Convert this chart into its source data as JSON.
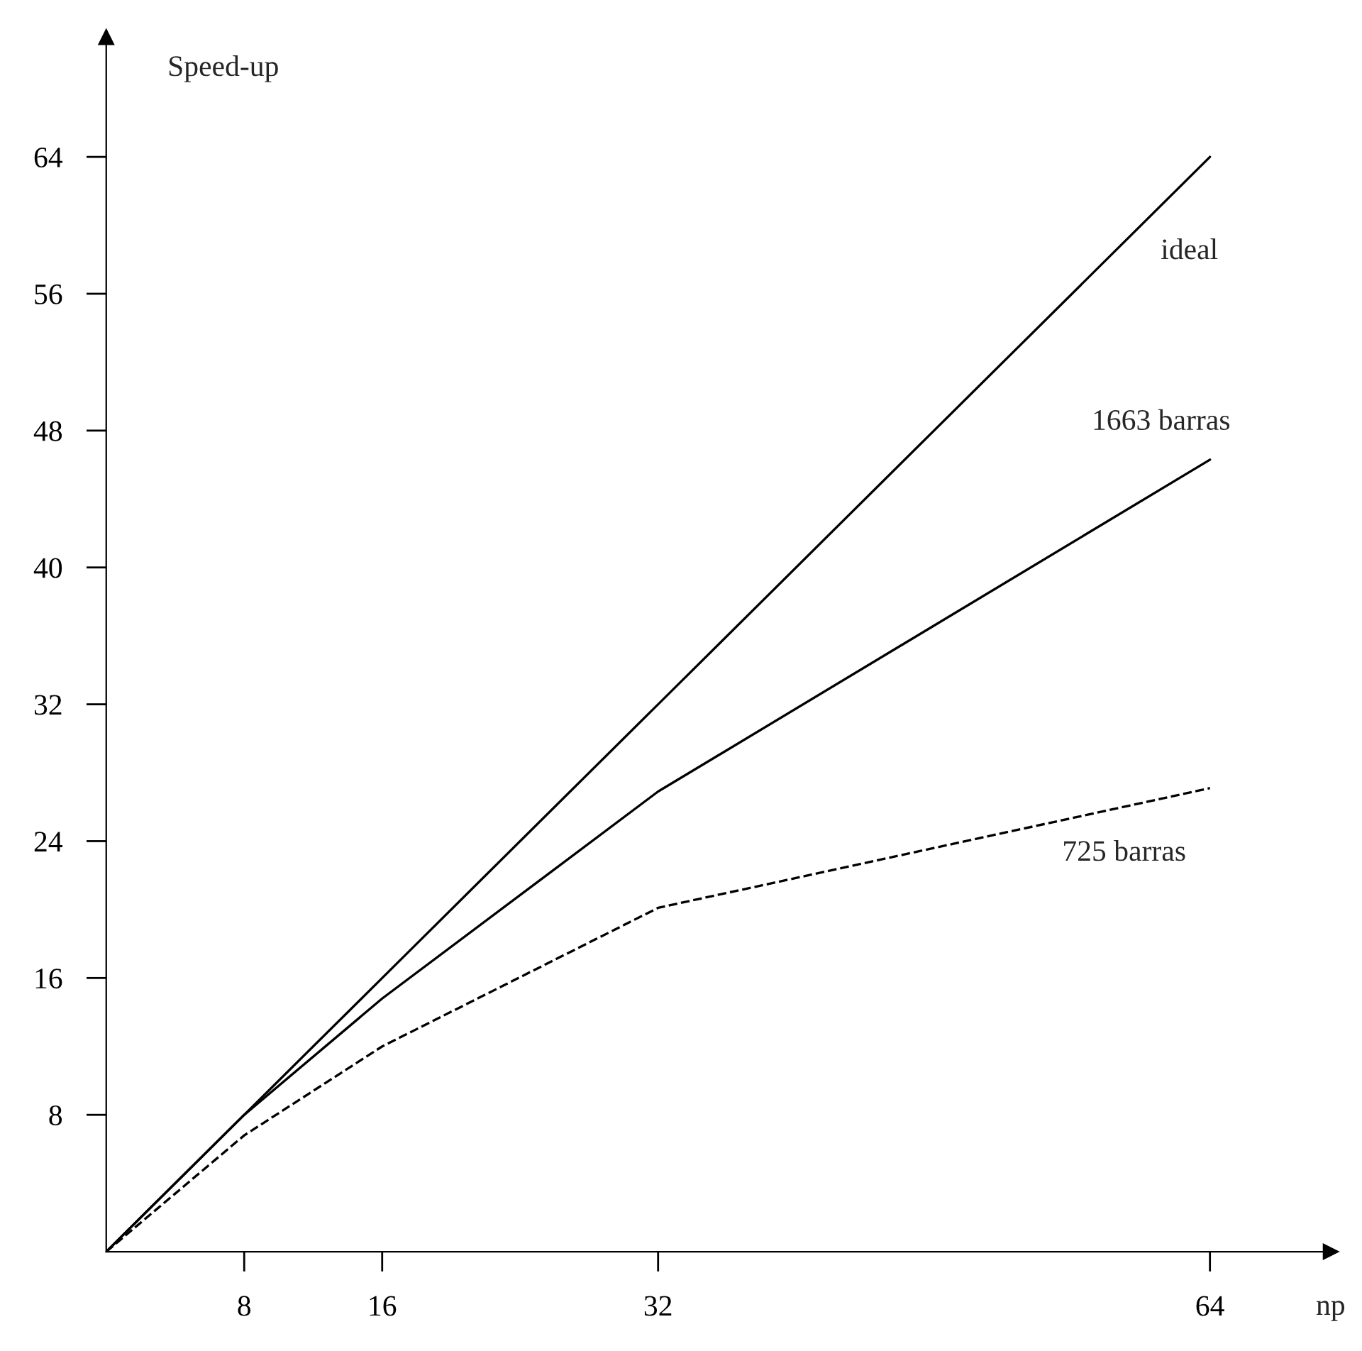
{
  "chart_data": {
    "type": "line",
    "xlabel": "np",
    "ylabel": "Speed-up",
    "x": [
      0,
      8,
      16,
      32,
      64
    ],
    "series": [
      {
        "name": "ideal",
        "color": "#000000",
        "values": [
          0,
          8,
          16,
          32,
          64
        ],
        "line_style": "solid"
      },
      {
        "name": "1663 barras",
        "color": "#000000",
        "values": [
          0,
          8,
          14.8,
          26.9,
          46.3
        ],
        "line_style": "solid"
      },
      {
        "name": "725 barras",
        "color": "#000000",
        "values": [
          0,
          6.8,
          12,
          20.1,
          27.1
        ],
        "line_style": "dashed"
      }
    ],
    "xlim": [
      0,
      71
    ],
    "ylim": [
      0,
      71
    ],
    "xticks": [
      8,
      16,
      32,
      64
    ],
    "yticks": [
      8,
      16,
      24,
      32,
      40,
      48,
      56,
      64
    ],
    "grid": false,
    "marker": "none"
  }
}
